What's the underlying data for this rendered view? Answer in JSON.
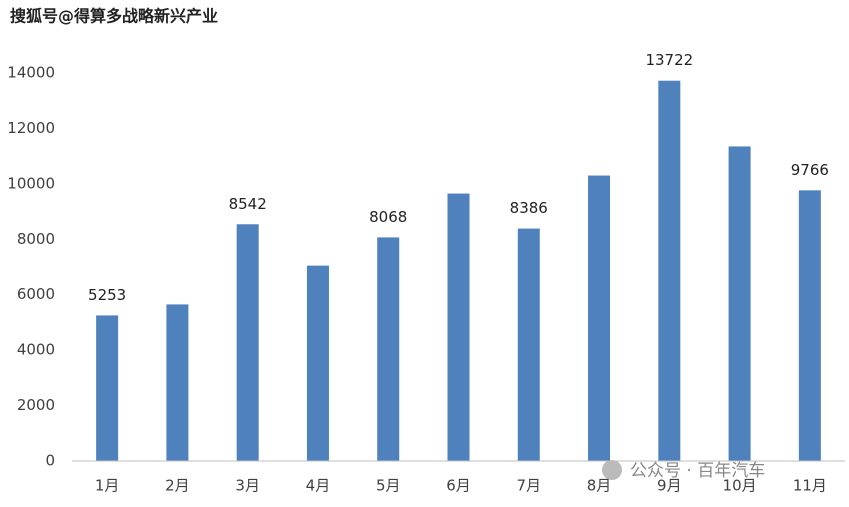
{
  "chart_data": {
    "type": "bar",
    "watermarks": [
      "搜狐号@得算多战略新兴产业",
      "公众号 · 百年汽车"
    ],
    "categories": [
      "1月",
      "2月",
      "3月",
      "4月",
      "5月",
      "6月",
      "7月",
      "8月",
      "9月",
      "10月",
      "11月"
    ],
    "values": [
      5253,
      5650,
      8542,
      7050,
      8068,
      9650,
      8386,
      10300,
      13722,
      11350,
      9766
    ],
    "value_labels": [
      "5253",
      null,
      "8542",
      null,
      "8068",
      null,
      "8386",
      null,
      "13722",
      null,
      "9766"
    ],
    "color": "#4f81bd",
    "ylim": [
      0,
      14000
    ],
    "yticks": [
      0,
      2000,
      4000,
      6000,
      8000,
      10000,
      12000,
      14000
    ],
    "grid": false
  }
}
